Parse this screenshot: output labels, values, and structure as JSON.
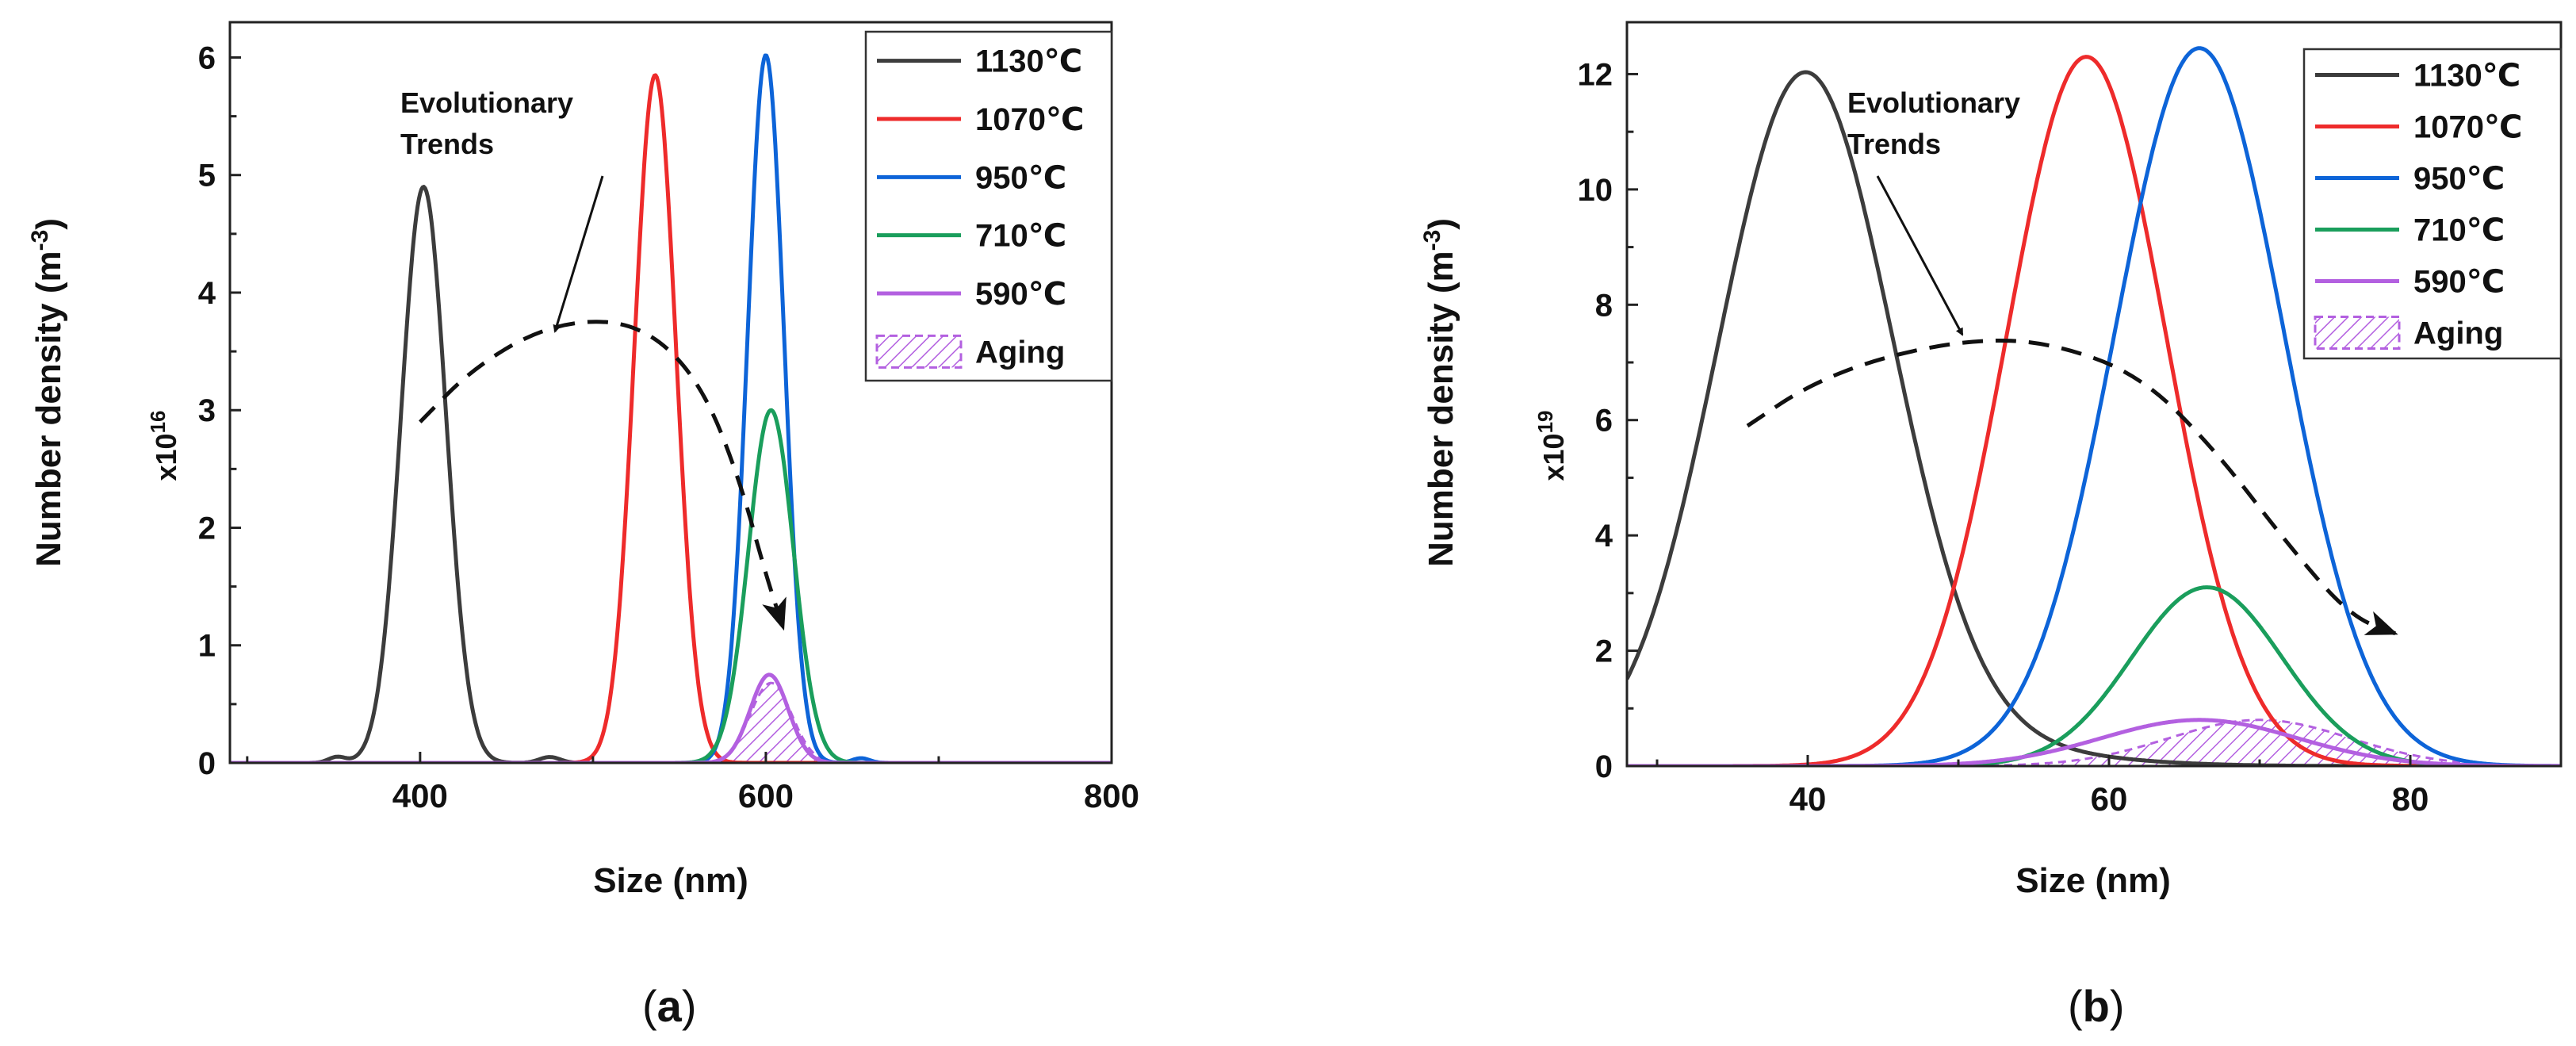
{
  "chart_data": [
    {
      "type": "line",
      "panel_label": "a",
      "xlabel": "Size (nm)",
      "ylabel": "Number density (m",
      "ylabel_exp": "-3",
      "ylabel_close": ")",
      "multiplier_base": "x10",
      "multiplier_exp": "16",
      "xlim": [
        290,
        800
      ],
      "ylim": [
        0,
        6.3
      ],
      "xticks": [
        400,
        600,
        800
      ],
      "yticks": [
        0,
        1,
        2,
        3,
        4,
        5,
        6
      ],
      "annotation": [
        "Evolutionary",
        "Trends"
      ],
      "legend": [
        "1130℃",
        "1070℃",
        "950℃",
        "710℃",
        "590℃",
        "Aging"
      ],
      "series": [
        {
          "name": "1130℃",
          "color": "#3c3c3c",
          "peaks": [
            {
              "mu": 402,
              "sigma": 13,
              "amp": 4.9
            },
            {
              "mu": 352,
              "sigma": 5,
              "amp": 0.05
            },
            {
              "mu": 475,
              "sigma": 6,
              "amp": 0.05
            }
          ]
        },
        {
          "name": "1070℃",
          "color": "#ee2b2b",
          "peaks": [
            {
              "mu": 536,
              "sigma": 12,
              "amp": 5.85
            }
          ]
        },
        {
          "name": "950℃",
          "color": "#0d64d8",
          "peaks": [
            {
              "mu": 600,
              "sigma": 10.5,
              "amp": 6.02
            },
            {
              "mu": 655,
              "sigma": 5,
              "amp": 0.04
            }
          ]
        },
        {
          "name": "710℃",
          "color": "#1a9e5c",
          "peaks": [
            {
              "mu": 603,
              "sigma": 13,
              "amp": 3.0
            }
          ]
        },
        {
          "name": "590℃",
          "color": "#b360e0",
          "peaks": [
            {
              "mu": 602,
              "sigma": 11,
              "amp": 0.75
            }
          ]
        }
      ],
      "aging": {
        "name": "Aging",
        "color": "#b360e0",
        "peaks": [
          {
            "mu": 603,
            "sigma": 12,
            "amp": 0.68
          }
        ]
      },
      "trend": {
        "x": [
          400,
          430,
          470,
          510,
          540,
          565,
          585,
          600,
          610
        ],
        "y": [
          2.9,
          3.35,
          3.7,
          3.78,
          3.6,
          3.15,
          2.4,
          1.6,
          1.15
        ]
      }
    },
    {
      "type": "line",
      "panel_label": "b",
      "xlabel": "Size (nm)",
      "ylabel": "Number density (m",
      "ylabel_exp": "-3",
      "ylabel_close": ")",
      "multiplier_base": "x10",
      "multiplier_exp": "19",
      "xlim": [
        28,
        90
      ],
      "ylim": [
        0,
        12.9
      ],
      "xticks": [
        40,
        60,
        80
      ],
      "yticks": [
        0,
        2,
        4,
        6,
        8,
        10,
        12
      ],
      "annotation": [
        "Evolutionary",
        "Trends"
      ],
      "legend": [
        "1130℃",
        "1070℃",
        "950℃",
        "710℃",
        "590℃",
        "Aging"
      ],
      "series": [
        {
          "name": "1130℃",
          "color": "#3c3c3c",
          "peaks": [
            {
              "mu": 39.8,
              "sigma": 5.8,
              "amp": 11.9
            },
            {
              "mu": 50,
              "sigma": 8,
              "amp": 0.3
            }
          ]
        },
        {
          "name": "1070℃",
          "color": "#ee2b2b",
          "peaks": [
            {
              "mu": 58.5,
              "sigma": 5.3,
              "amp": 12.3
            }
          ]
        },
        {
          "name": "950℃",
          "color": "#0d64d8",
          "peaks": [
            {
              "mu": 66,
              "sigma": 5.6,
              "amp": 12.45
            }
          ]
        },
        {
          "name": "710℃",
          "color": "#1a9e5c",
          "peaks": [
            {
              "mu": 66.5,
              "sigma": 5.0,
              "amp": 3.1
            }
          ]
        },
        {
          "name": "590℃",
          "color": "#b360e0",
          "peaks": [
            {
              "mu": 66,
              "sigma": 6.5,
              "amp": 0.8
            }
          ]
        }
      ],
      "aging": {
        "name": "Aging",
        "color": "#b360e0",
        "peaks": [
          {
            "mu": 70,
            "sigma": 6.0,
            "amp": 0.8
          }
        ]
      },
      "trend": {
        "x": [
          36,
          40,
          45,
          51,
          56,
          62,
          67,
          72,
          76,
          79
        ],
        "y": [
          5.9,
          6.6,
          7.1,
          7.4,
          7.35,
          6.8,
          5.5,
          3.8,
          2.6,
          2.3
        ]
      }
    }
  ]
}
